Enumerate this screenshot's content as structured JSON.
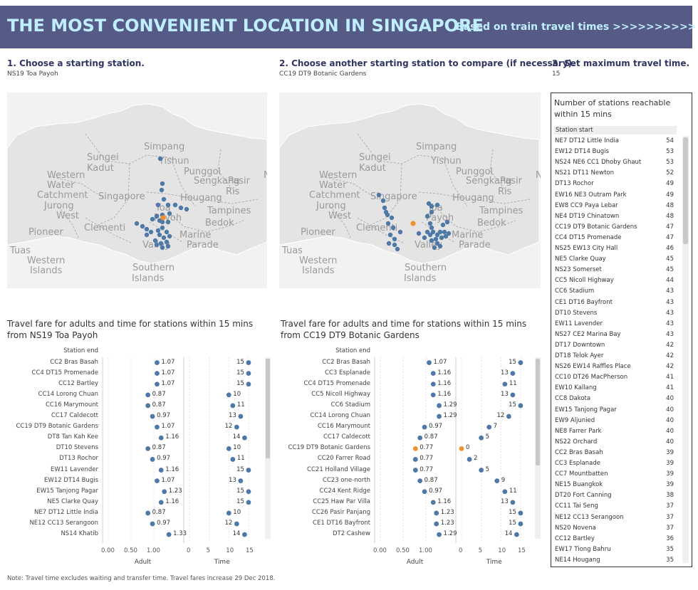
{
  "banner": {
    "title": "THE MOST CONVENIENT LOCATION IN SINGAPORE",
    "subtitle": "Based on train travel times >>>>>>>>>>"
  },
  "steps": [
    {
      "label": "1. Choose a starting station.",
      "value": "NS19  Toa Payoh"
    },
    {
      "label": "2. Choose another starting station to compare (if necessary).",
      "value": "CC19  DT9  Botanic Gardens"
    },
    {
      "label": "3. Set maximum travel time.",
      "value": "15"
    }
  ],
  "map_labels": [
    {
      "text": "Simpang"
    },
    {
      "text": "Sungei"
    },
    {
      "text": "Kadut"
    },
    {
      "text": "Yishun"
    },
    {
      "text": "Punggol"
    },
    {
      "text": "Sengkang"
    },
    {
      "text": "Pasir"
    },
    {
      "text": "Ris"
    },
    {
      "text": "Western"
    },
    {
      "text": "Water"
    },
    {
      "text": "Catchment"
    },
    {
      "text": "Singapore"
    },
    {
      "text": "Hougang"
    },
    {
      "text": "Jurong"
    },
    {
      "text": "West"
    },
    {
      "text": "Tampines"
    },
    {
      "text": "Toa"
    },
    {
      "text": "Payoh"
    },
    {
      "text": "Bedok"
    },
    {
      "text": "Pioneer"
    },
    {
      "text": "Clementi"
    },
    {
      "text": "Marine"
    },
    {
      "text": "Parade"
    },
    {
      "text": "Tuas"
    },
    {
      "text": "Western"
    },
    {
      "text": "Islands"
    },
    {
      "text": "Southern"
    },
    {
      "text": "Islands"
    },
    {
      "text": "Valley"
    },
    {
      "text": "No"
    }
  ],
  "left": {
    "heading1": "Travel fare for adults and time for stations within 15 mins",
    "heading2": "from NS19  Toa Payoh",
    "column_header": "Station end",
    "rows": [
      {
        "station": "CC2  Bras Basah",
        "fare": "1.07",
        "time": "15"
      },
      {
        "station": "CC4 DT15  Promenade",
        "fare": "1.07",
        "time": "15"
      },
      {
        "station": "CC12  Bartley",
        "fare": "1.07",
        "time": "15"
      },
      {
        "station": "CC14  Lorong Chuan",
        "fare": "0.87",
        "time": "10"
      },
      {
        "station": "CC16  Marymount",
        "fare": "0.87",
        "time": "11"
      },
      {
        "station": "CC17  Caldecott",
        "fare": "0.97",
        "time": "13"
      },
      {
        "station": "CC19  DT9  Botanic Gardens",
        "fare": "1.07",
        "time": "12"
      },
      {
        "station": "DT8  Tan Kah Kee",
        "fare": "1.16",
        "time": "14"
      },
      {
        "station": "DT10  Stevens",
        "fare": "0.87",
        "time": "10"
      },
      {
        "station": "DT13  Rochor",
        "fare": "0.97",
        "time": "11"
      },
      {
        "station": "EW11  Lavender",
        "fare": "1.16",
        "time": "15"
      },
      {
        "station": "EW12  DT14  Bugis",
        "fare": "1.07",
        "time": "13"
      },
      {
        "station": "EW15  Tanjong Pagar",
        "fare": "1.23",
        "time": "15"
      },
      {
        "station": "NE5  Clarke Quay",
        "fare": "1.16",
        "time": "15"
      },
      {
        "station": "NE7  DT12  Little India",
        "fare": "0.87",
        "time": "10"
      },
      {
        "station": "NE12  CC13  Serangoon",
        "fare": "0.97",
        "time": "12"
      },
      {
        "station": "NS14  Khatib",
        "fare": "1.33",
        "time": "14"
      }
    ],
    "fare_ticks": [
      "0.00",
      "0.50",
      "1.00"
    ],
    "time_ticks": [
      "0",
      "5",
      "10",
      "15"
    ],
    "fare_axis_title": "Adult",
    "time_axis_title": "Time"
  },
  "right": {
    "heading1": "Travel fare for adults and time for stations within 15 mins",
    "heading2": "from CC19  DT9  Botanic Gardens",
    "column_header": "Station end",
    "rows": [
      {
        "station": "CC2  Bras Basah",
        "fare": "1.07",
        "time": "15",
        "hl": false
      },
      {
        "station": "CC3  Esplanade",
        "fare": "1.16",
        "time": "13",
        "hl": false
      },
      {
        "station": "CC4 DT15  Promenade",
        "fare": "1.16",
        "time": "11",
        "hl": false
      },
      {
        "station": "CC5  Nicoll Highway",
        "fare": "1.16",
        "time": "13",
        "hl": false
      },
      {
        "station": "CC6  Stadium",
        "fare": "1.29",
        "time": "15",
        "hl": false
      },
      {
        "station": "CC14  Lorong Chuan",
        "fare": "1.29",
        "time": "12",
        "hl": false
      },
      {
        "station": "CC16  Marymount",
        "fare": "0.97",
        "time": "7",
        "hl": false
      },
      {
        "station": "CC17  Caldecott",
        "fare": "0.87",
        "time": "5",
        "hl": false
      },
      {
        "station": "CC19  DT9  Botanic Gardens",
        "fare": "0.77",
        "time": "0",
        "hl": true
      },
      {
        "station": "CC20  Farrer Road",
        "fare": "0.77",
        "time": "2",
        "hl": false
      },
      {
        "station": "CC21  Holland Village",
        "fare": "0.77",
        "time": "5",
        "hl": false
      },
      {
        "station": "CC23  one-north",
        "fare": "0.87",
        "time": "9",
        "hl": false
      },
      {
        "station": "CC24  Kent Ridge",
        "fare": "0.97",
        "time": "11",
        "hl": false
      },
      {
        "station": "CC25  Haw Par Villa",
        "fare": "1.16",
        "time": "13",
        "hl": false
      },
      {
        "station": "CC26  Pasir Panjang",
        "fare": "1.23",
        "time": "15",
        "hl": false
      },
      {
        "station": "CE1  DT16  Bayfront",
        "fare": "1.23",
        "time": "15",
        "hl": false
      },
      {
        "station": "DT2  Cashew",
        "fare": "1.29",
        "time": "14",
        "hl": false
      }
    ],
    "fare_ticks": [
      "0.00",
      "0.50",
      "1.00"
    ],
    "time_ticks": [
      "0",
      "5",
      "10",
      "15"
    ],
    "fare_axis_title": "Adult",
    "time_axis_title": "Time"
  },
  "reachable": {
    "heading": "Number of stations reachable within 15 mins",
    "column_header": "Station start",
    "rows": [
      {
        "station": "NE7 DT12  Little India",
        "count": "54"
      },
      {
        "station": "EW12 DT14  Bugis",
        "count": "53"
      },
      {
        "station": "NS24 NE6 CC1 Dhoby Ghaut",
        "count": "53"
      },
      {
        "station": "NS21 DT11  Newton",
        "count": "52"
      },
      {
        "station": "DT13  Rochor",
        "count": "49"
      },
      {
        "station": "EW16 NE3  Outram Park",
        "count": "49"
      },
      {
        "station": "EW8 CC9  Paya Lebar",
        "count": "48"
      },
      {
        "station": "NE4 DT19 Chinatown",
        "count": "48"
      },
      {
        "station": "CC19  DT9  Botanic Gardens",
        "count": "47"
      },
      {
        "station": "CC4 DT15  Promenade",
        "count": "47"
      },
      {
        "station": "NS25 EW13 City Hall",
        "count": "46"
      },
      {
        "station": "NE5 Clarke Quay",
        "count": "45"
      },
      {
        "station": "NS23  Somerset",
        "count": "45"
      },
      {
        "station": "CC5  Nicoll Highway",
        "count": "44"
      },
      {
        "station": "CC6  Stadium",
        "count": "43"
      },
      {
        "station": "CE1  DT16  Bayfront",
        "count": "43"
      },
      {
        "station": "DT10  Stevens",
        "count": "43"
      },
      {
        "station": "EW11 Lavender",
        "count": "43"
      },
      {
        "station": "NS27 CE2  Marina Bay",
        "count": "43"
      },
      {
        "station": "DT17 Downtown",
        "count": "42"
      },
      {
        "station": "DT18  Telok Ayer",
        "count": "42"
      },
      {
        "station": "NS26 EW14 Raffles Place",
        "count": "42"
      },
      {
        "station": "CC10 DT26  MacPherson",
        "count": "41"
      },
      {
        "station": "EW10 Kallang",
        "count": "41"
      },
      {
        "station": "CC8 Dakota",
        "count": "40"
      },
      {
        "station": "EW15  Tanjong Pagar",
        "count": "40"
      },
      {
        "station": "EW9  Aljunied",
        "count": "40"
      },
      {
        "station": "NE8 Farrer Park",
        "count": "40"
      },
      {
        "station": "NS22  Orchard",
        "count": "40"
      },
      {
        "station": "CC2  Bras Basah",
        "count": "39"
      },
      {
        "station": "CC3 Esplanade",
        "count": "39"
      },
      {
        "station": "CC7  Mountbatten",
        "count": "39"
      },
      {
        "station": "NE15  Buangkok",
        "count": "39"
      },
      {
        "station": "DT20 Fort Canning",
        "count": "38"
      },
      {
        "station": "CC11  Tai Seng",
        "count": "37"
      },
      {
        "station": "NE12 CC13  Serangoon",
        "count": "37"
      },
      {
        "station": "NS20  Novena",
        "count": "37"
      },
      {
        "station": "CC12  Bartley",
        "count": "36"
      },
      {
        "station": "EW17  Tiong Bahru",
        "count": "35"
      },
      {
        "station": "NE14 Hougang",
        "count": "35"
      }
    ]
  },
  "note": "Note: Travel time excludes waiting and transfer time. Travel fares increase 29 Dec 2018.",
  "colors": {
    "banner": "#555a86",
    "banner_text": "#bfefff",
    "dot": "#4e79a7",
    "highlight": "#f28e2b"
  }
}
